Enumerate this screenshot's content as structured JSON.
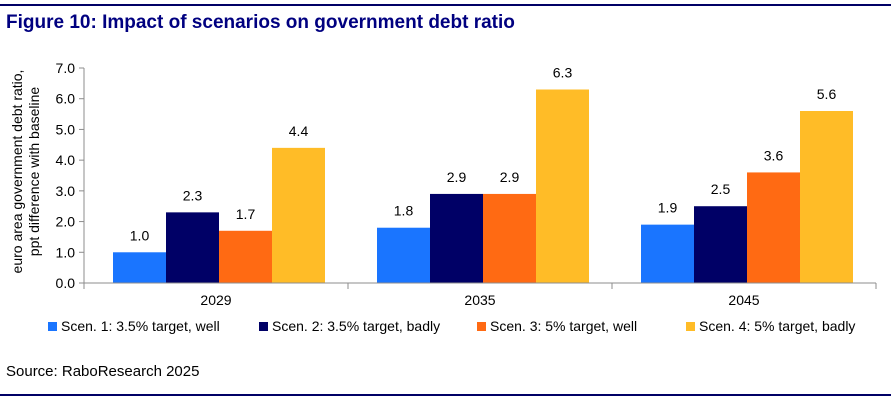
{
  "title": "Figure 10: Impact of scenarios on government debt ratio",
  "source": "Source: RaboResearch 2025",
  "chart_data": {
    "type": "bar",
    "categories": [
      "2029",
      "2035",
      "2045"
    ],
    "series": [
      {
        "name": "Scen. 1: 3.5% target, well",
        "color": "#1a75ff",
        "values": [
          1.0,
          1.8,
          1.9
        ]
      },
      {
        "name": "Scen. 2: 3.5% target, badly",
        "color": "#000066",
        "values": [
          2.3,
          2.9,
          2.5
        ]
      },
      {
        "name": "Scen. 3: 5% target, well",
        "color": "#ff6a13",
        "values": [
          1.7,
          2.9,
          3.6
        ]
      },
      {
        "name": "Scen. 4: 5% target, badly",
        "color": "#ffbc27",
        "values": [
          4.4,
          6.3,
          5.6
        ]
      }
    ],
    "ylabel": [
      "euro area government debt ratio,",
      "ppt difference with baseline"
    ],
    "ylim": [
      0,
      7
    ],
    "yticks": [
      "0.0",
      "1.0",
      "2.0",
      "3.0",
      "4.0",
      "5.0",
      "6.0",
      "7.0"
    ],
    "data_labels": true,
    "legend": "bottom",
    "grid": false
  }
}
